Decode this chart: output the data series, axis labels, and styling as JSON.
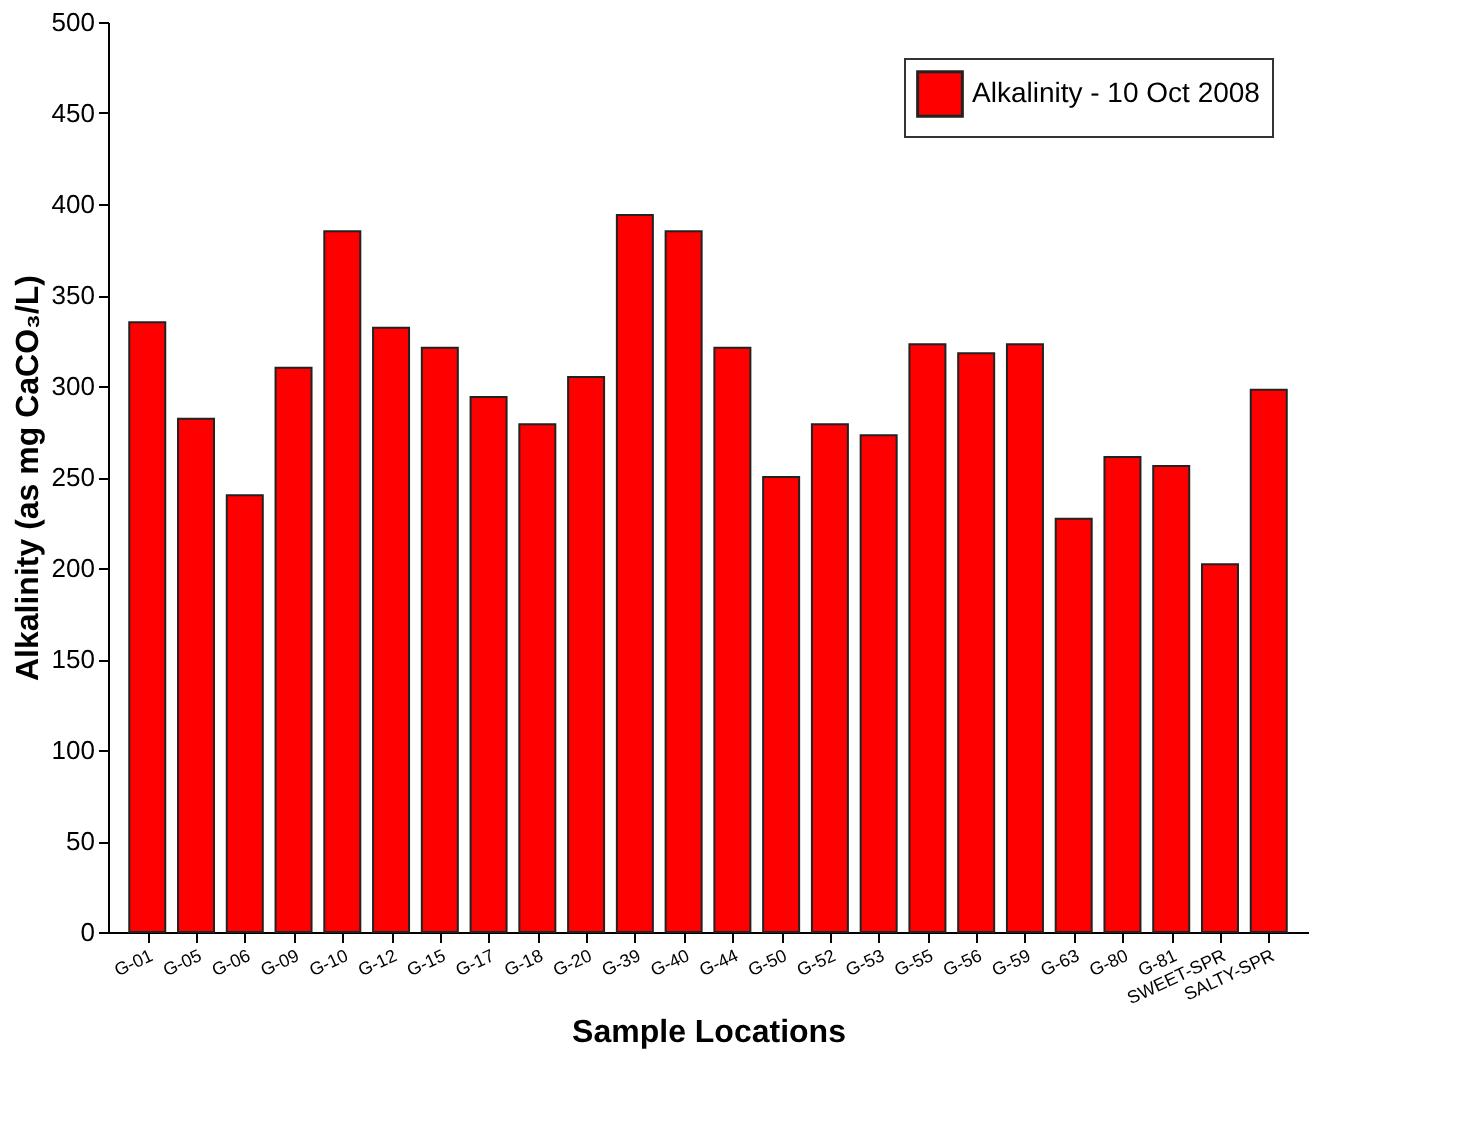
{
  "chart_data": {
    "type": "bar",
    "xlabel": "Sample Locations",
    "ylabel": "Alkalinity (as mg CaCO₃/L)",
    "categories": [
      "G-01",
      "G-05",
      "G-06",
      "G-09",
      "G-10",
      "G-12",
      "G-15",
      "G-17",
      "G-18",
      "G-20",
      "G-39",
      "G-40",
      "G-44",
      "G-50",
      "G-52",
      "G-53",
      "G-55",
      "G-56",
      "G-59",
      "G-63",
      "G-80",
      "G-81",
      "SWEET-SPR",
      "SALTY-SPR"
    ],
    "series": [
      {
        "name": "Alkalinity - 10 Oct 2008",
        "color": "#ff0000",
        "values": [
          335,
          282,
          240,
          310,
          385,
          332,
          321,
          294,
          279,
          305,
          394,
          385,
          321,
          250,
          279,
          273,
          323,
          318,
          323,
          227,
          261,
          256,
          202,
          298
        ]
      }
    ],
    "ylim": [
      0,
      500
    ],
    "yticks": [
      0,
      50,
      100,
      150,
      200,
      250,
      300,
      350,
      400,
      450,
      500
    ],
    "grid": false,
    "legend": "top right"
  }
}
